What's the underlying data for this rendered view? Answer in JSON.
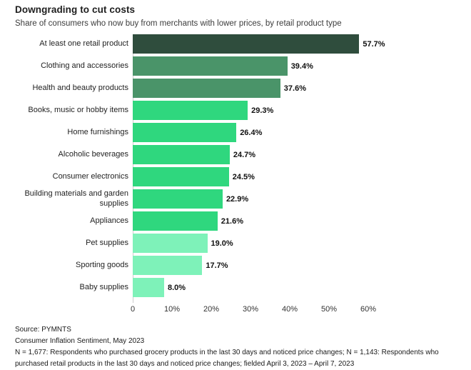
{
  "header": {
    "title": "Downgrading to cut costs",
    "subtitle": "Share of consumers who now buy from merchants with lower prices, by retail product type"
  },
  "chart_data": {
    "type": "bar",
    "orientation": "horizontal",
    "title": "Downgrading to cut costs",
    "subtitle": "Share of consumers who now buy from merchants with lower prices, by retail product type",
    "categories": [
      "At least one retail product",
      "Clothing and accessories",
      "Health and beauty products",
      "Books, music or hobby items",
      "Home furnishings",
      "Alcoholic beverages",
      "Consumer electronics",
      "Building materials and garden supplies",
      "Appliances",
      "Pet supplies",
      "Sporting goods",
      "Baby supplies"
    ],
    "values": [
      57.7,
      39.4,
      37.6,
      29.3,
      26.4,
      24.7,
      24.5,
      22.9,
      21.6,
      19.0,
      17.7,
      8.0
    ],
    "value_labels": [
      "57.7%",
      "39.4%",
      "37.6%",
      "29.3%",
      "26.4%",
      "24.7%",
      "24.5%",
      "22.9%",
      "21.6%",
      "19.0%",
      "17.7%",
      "8.0%"
    ],
    "bar_colors": [
      "#2f4d3d",
      "#4a9469",
      "#4a9469",
      "#2fd77e",
      "#2fd77e",
      "#2fd77e",
      "#2fd77e",
      "#2fd77e",
      "#2fd77e",
      "#7ef2b9",
      "#7ef2b9",
      "#7ef2b9"
    ],
    "x_ticks": [
      {
        "value": 0,
        "label": "0"
      },
      {
        "value": 10,
        "label": "10%"
      },
      {
        "value": 20,
        "label": "20%"
      },
      {
        "value": 30,
        "label": "30%"
      },
      {
        "value": 40,
        "label": "40%"
      },
      {
        "value": 50,
        "label": "50%"
      },
      {
        "value": 60,
        "label": "60%"
      }
    ],
    "xlim": [
      0,
      60
    ],
    "grid": false,
    "legend": false,
    "xlabel": "",
    "ylabel": ""
  },
  "footer": {
    "lines": [
      "Source: PYMNTS",
      "Consumer Inflation Sentiment, May 2023",
      "N = 1,677: Respondents who purchased grocery products in the last 30 days and noticed price changes; N = 1,143: Respondents who purchased retail products in the last 30 days and noticed price changes; fielded April 3, 2023 – April 7, 2023"
    ]
  }
}
